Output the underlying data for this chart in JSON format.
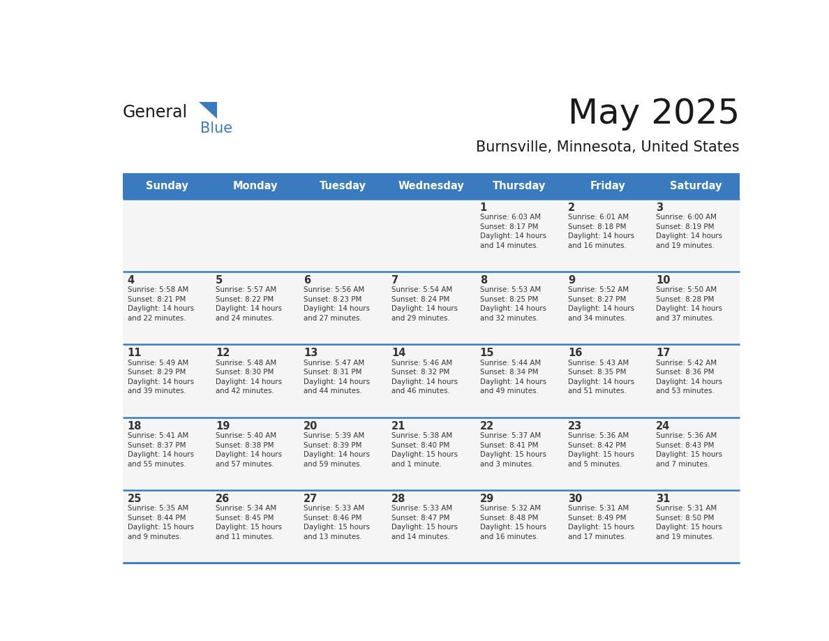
{
  "title": "May 2025",
  "subtitle": "Burnsville, Minnesota, United States",
  "header_color": "#3a7abf",
  "header_text_color": "#ffffff",
  "cell_bg_color": "#f5f5f5",
  "day_number_color": "#333333",
  "text_color": "#333333",
  "line_color": "#3a7abf",
  "days_of_week": [
    "Sunday",
    "Monday",
    "Tuesday",
    "Wednesday",
    "Thursday",
    "Friday",
    "Saturday"
  ],
  "weeks": [
    [
      {
        "day": "",
        "sunrise": "",
        "sunset": "",
        "daylight": ""
      },
      {
        "day": "",
        "sunrise": "",
        "sunset": "",
        "daylight": ""
      },
      {
        "day": "",
        "sunrise": "",
        "sunset": "",
        "daylight": ""
      },
      {
        "day": "",
        "sunrise": "",
        "sunset": "",
        "daylight": ""
      },
      {
        "day": "1",
        "sunrise": "6:03 AM",
        "sunset": "8:17 PM",
        "daylight": "14 hours\nand 14 minutes."
      },
      {
        "day": "2",
        "sunrise": "6:01 AM",
        "sunset": "8:18 PM",
        "daylight": "14 hours\nand 16 minutes."
      },
      {
        "day": "3",
        "sunrise": "6:00 AM",
        "sunset": "8:19 PM",
        "daylight": "14 hours\nand 19 minutes."
      }
    ],
    [
      {
        "day": "4",
        "sunrise": "5:58 AM",
        "sunset": "8:21 PM",
        "daylight": "14 hours\nand 22 minutes."
      },
      {
        "day": "5",
        "sunrise": "5:57 AM",
        "sunset": "8:22 PM",
        "daylight": "14 hours\nand 24 minutes."
      },
      {
        "day": "6",
        "sunrise": "5:56 AM",
        "sunset": "8:23 PM",
        "daylight": "14 hours\nand 27 minutes."
      },
      {
        "day": "7",
        "sunrise": "5:54 AM",
        "sunset": "8:24 PM",
        "daylight": "14 hours\nand 29 minutes."
      },
      {
        "day": "8",
        "sunrise": "5:53 AM",
        "sunset": "8:25 PM",
        "daylight": "14 hours\nand 32 minutes."
      },
      {
        "day": "9",
        "sunrise": "5:52 AM",
        "sunset": "8:27 PM",
        "daylight": "14 hours\nand 34 minutes."
      },
      {
        "day": "10",
        "sunrise": "5:50 AM",
        "sunset": "8:28 PM",
        "daylight": "14 hours\nand 37 minutes."
      }
    ],
    [
      {
        "day": "11",
        "sunrise": "5:49 AM",
        "sunset": "8:29 PM",
        "daylight": "14 hours\nand 39 minutes."
      },
      {
        "day": "12",
        "sunrise": "5:48 AM",
        "sunset": "8:30 PM",
        "daylight": "14 hours\nand 42 minutes."
      },
      {
        "day": "13",
        "sunrise": "5:47 AM",
        "sunset": "8:31 PM",
        "daylight": "14 hours\nand 44 minutes."
      },
      {
        "day": "14",
        "sunrise": "5:46 AM",
        "sunset": "8:32 PM",
        "daylight": "14 hours\nand 46 minutes."
      },
      {
        "day": "15",
        "sunrise": "5:44 AM",
        "sunset": "8:34 PM",
        "daylight": "14 hours\nand 49 minutes."
      },
      {
        "day": "16",
        "sunrise": "5:43 AM",
        "sunset": "8:35 PM",
        "daylight": "14 hours\nand 51 minutes."
      },
      {
        "day": "17",
        "sunrise": "5:42 AM",
        "sunset": "8:36 PM",
        "daylight": "14 hours\nand 53 minutes."
      }
    ],
    [
      {
        "day": "18",
        "sunrise": "5:41 AM",
        "sunset": "8:37 PM",
        "daylight": "14 hours\nand 55 minutes."
      },
      {
        "day": "19",
        "sunrise": "5:40 AM",
        "sunset": "8:38 PM",
        "daylight": "14 hours\nand 57 minutes."
      },
      {
        "day": "20",
        "sunrise": "5:39 AM",
        "sunset": "8:39 PM",
        "daylight": "14 hours\nand 59 minutes."
      },
      {
        "day": "21",
        "sunrise": "5:38 AM",
        "sunset": "8:40 PM",
        "daylight": "15 hours\nand 1 minute."
      },
      {
        "day": "22",
        "sunrise": "5:37 AM",
        "sunset": "8:41 PM",
        "daylight": "15 hours\nand 3 minutes."
      },
      {
        "day": "23",
        "sunrise": "5:36 AM",
        "sunset": "8:42 PM",
        "daylight": "15 hours\nand 5 minutes."
      },
      {
        "day": "24",
        "sunrise": "5:36 AM",
        "sunset": "8:43 PM",
        "daylight": "15 hours\nand 7 minutes."
      }
    ],
    [
      {
        "day": "25",
        "sunrise": "5:35 AM",
        "sunset": "8:44 PM",
        "daylight": "15 hours\nand 9 minutes."
      },
      {
        "day": "26",
        "sunrise": "5:34 AM",
        "sunset": "8:45 PM",
        "daylight": "15 hours\nand 11 minutes."
      },
      {
        "day": "27",
        "sunrise": "5:33 AM",
        "sunset": "8:46 PM",
        "daylight": "15 hours\nand 13 minutes."
      },
      {
        "day": "28",
        "sunrise": "5:33 AM",
        "sunset": "8:47 PM",
        "daylight": "15 hours\nand 14 minutes."
      },
      {
        "day": "29",
        "sunrise": "5:32 AM",
        "sunset": "8:48 PM",
        "daylight": "15 hours\nand 16 minutes."
      },
      {
        "day": "30",
        "sunrise": "5:31 AM",
        "sunset": "8:49 PM",
        "daylight": "15 hours\nand 17 minutes."
      },
      {
        "day": "31",
        "sunrise": "5:31 AM",
        "sunset": "8:50 PM",
        "daylight": "15 hours\nand 19 minutes."
      }
    ]
  ],
  "logo_general_color": "#1a1a1a",
  "logo_blue_color": "#3a7abf",
  "title_color": "#1a1a1a",
  "subtitle_color": "#1a1a1a"
}
